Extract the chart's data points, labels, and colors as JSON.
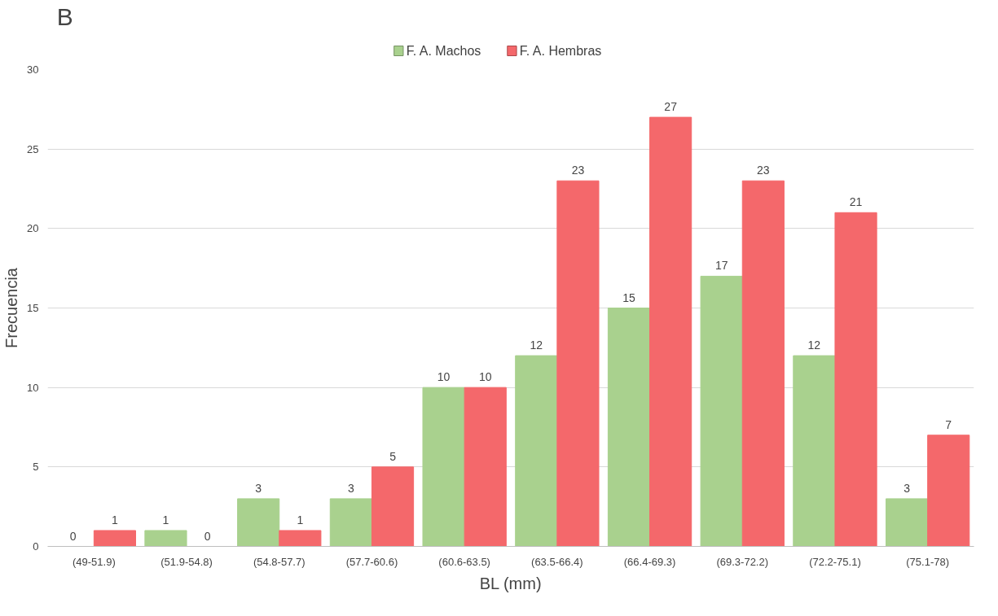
{
  "chart_data": {
    "type": "bar",
    "xlabel": "BL (mm)",
    "ylabel": "Frecuencia",
    "annotations": [
      "B"
    ],
    "categories": [
      "(49-51.9)",
      "(51.9-54.8)",
      "(54.8-57.7)",
      "(57.7-60.6)",
      "(60.6-63.5)",
      "(63.5-66.4)",
      "(66.4-69.3)",
      "(69.3-72.2)",
      "(72.2-75.1)",
      "(75.1-78)"
    ],
    "series": [
      {
        "name": "F. A. Machos",
        "color": "#a9d18e",
        "values": [
          0,
          1,
          3,
          3,
          10,
          12,
          15,
          17,
          12,
          3
        ]
      },
      {
        "name": "F. A. Hembras",
        "color": "#f4686b",
        "values": [
          1,
          0,
          1,
          5,
          10,
          23,
          27,
          23,
          21,
          7
        ]
      }
    ],
    "ylim": [
      0,
      30
    ],
    "yticks": [
      0,
      5,
      10,
      15,
      20,
      25,
      30
    ],
    "grid": "y",
    "legend": "top",
    "data_labels": true
  }
}
